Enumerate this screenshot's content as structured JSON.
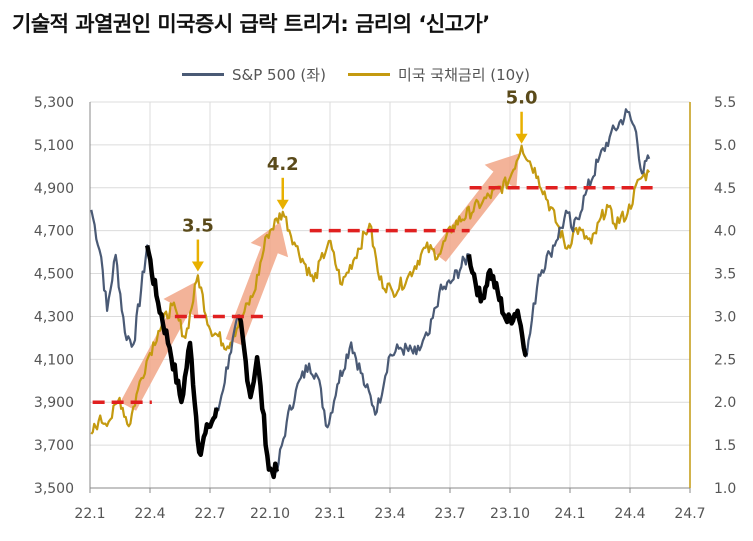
{
  "title": "기술적 과열권인 미국증시 급락 트리거: 금리의 ‘신고가’",
  "legend": [
    {
      "name": "S&P 500 (좌)",
      "color": "#4a5a75"
    },
    {
      "name": "미국 국채금리 (10y)",
      "color": "#c49a10"
    }
  ],
  "colors": {
    "sp_highlight": "#000000",
    "threshold": "#e02020",
    "arrow": "#f0a080",
    "annotation_arrow": "#e8b000"
  },
  "chart_data": {
    "type": "line",
    "x_ticks": [
      "22.1",
      "22.4",
      "22.7",
      "22.10",
      "23.1",
      "23.4",
      "23.7",
      "23.10",
      "24.1",
      "24.4",
      "24.7"
    ],
    "y_left_ticks": [
      "5,300",
      "5,100",
      "4,900",
      "4,700",
      "4,500",
      "4,300",
      "4,100",
      "3,900",
      "3,700",
      "3,500"
    ],
    "y_right_ticks": [
      "5.5",
      "5.0",
      "4.5",
      "4.0",
      "3.5",
      "3.0",
      "2.5",
      "2.0",
      "1.5",
      "1.0"
    ],
    "ylim_left": [
      3500,
      5300
    ],
    "ylim_right": [
      1.0,
      5.5
    ],
    "grid": true,
    "series": [
      {
        "name": "S&P 500 (좌)",
        "axis": "left",
        "points": [
          [
            "2022-01-03",
            4797
          ],
          [
            "2022-01-18",
            4577
          ],
          [
            "2022-01-27",
            4326
          ],
          [
            "2022-02-09",
            4587
          ],
          [
            "2022-02-23",
            4225
          ],
          [
            "2022-03-08",
            4170
          ],
          [
            "2022-03-29",
            4631
          ],
          [
            "2022-04-12",
            4397
          ],
          [
            "2022-05-02",
            4155
          ],
          [
            "2022-05-20",
            3901
          ],
          [
            "2022-06-02",
            4176
          ],
          [
            "2022-06-16",
            3667
          ],
          [
            "2022-06-30",
            3785
          ],
          [
            "2022-07-15",
            3863
          ],
          [
            "2022-08-01",
            4119
          ],
          [
            "2022-08-16",
            4305
          ],
          [
            "2022-09-02",
            3924
          ],
          [
            "2022-09-12",
            4110
          ],
          [
            "2022-09-30",
            3586
          ],
          [
            "2022-10-12",
            3577
          ],
          [
            "2022-10-27",
            3808
          ],
          [
            "2022-11-10",
            3956
          ],
          [
            "2022-11-30",
            4080
          ],
          [
            "2022-12-13",
            4019
          ],
          [
            "2022-12-28",
            3783
          ],
          [
            "2023-01-12",
            3983
          ],
          [
            "2023-02-02",
            4179
          ],
          [
            "2023-02-24",
            3970
          ],
          [
            "2023-03-13",
            3855
          ],
          [
            "2023-03-31",
            4109
          ],
          [
            "2023-04-18",
            4154
          ],
          [
            "2023-05-12",
            4124
          ],
          [
            "2023-06-01",
            4221
          ],
          [
            "2023-06-16",
            4409
          ],
          [
            "2023-07-03",
            4455
          ],
          [
            "2023-07-31",
            4589
          ],
          [
            "2023-08-18",
            4370
          ],
          [
            "2023-09-01",
            4515
          ],
          [
            "2023-09-27",
            4274
          ],
          [
            "2023-10-13",
            4327
          ],
          [
            "2023-10-27",
            4117
          ],
          [
            "2023-11-14",
            4495
          ],
          [
            "2023-12-01",
            4594
          ],
          [
            "2023-12-28",
            4783
          ],
          [
            "2024-01-05",
            4697
          ],
          [
            "2024-01-24",
            4868
          ],
          [
            "2024-02-12",
            5021
          ],
          [
            "2024-03-01",
            5137
          ],
          [
            "2024-03-28",
            5254
          ],
          [
            "2024-04-10",
            5160
          ],
          [
            "2024-04-19",
            4967
          ],
          [
            "2024-04-30",
            5035
          ]
        ]
      },
      {
        "name": "미국 국채금리 (10y)",
        "axis": "right",
        "points": [
          [
            "2022-01-03",
            1.63
          ],
          [
            "2022-01-14",
            1.78
          ],
          [
            "2022-02-01",
            1.8
          ],
          [
            "2022-02-15",
            2.05
          ],
          [
            "2022-03-01",
            1.72
          ],
          [
            "2022-03-15",
            2.15
          ],
          [
            "2022-03-28",
            2.48
          ],
          [
            "2022-04-15",
            2.83
          ],
          [
            "2022-05-06",
            3.13
          ],
          [
            "2022-05-26",
            2.75
          ],
          [
            "2022-06-14",
            3.48
          ],
          [
            "2022-07-01",
            2.88
          ],
          [
            "2022-07-29",
            2.65
          ],
          [
            "2022-08-19",
            2.98
          ],
          [
            "2022-09-07",
            3.27
          ],
          [
            "2022-09-27",
            3.95
          ],
          [
            "2022-10-21",
            4.22
          ],
          [
            "2022-11-10",
            3.82
          ],
          [
            "2022-12-07",
            3.41
          ],
          [
            "2022-12-30",
            3.88
          ],
          [
            "2023-01-19",
            3.37
          ],
          [
            "2023-03-02",
            4.08
          ],
          [
            "2023-03-17",
            3.43
          ],
          [
            "2023-04-06",
            3.29
          ],
          [
            "2023-04-28",
            3.44
          ],
          [
            "2023-05-26",
            3.8
          ],
          [
            "2023-06-15",
            3.72
          ],
          [
            "2023-07-07",
            4.06
          ],
          [
            "2023-08-21",
            4.34
          ],
          [
            "2023-09-29",
            4.57
          ],
          [
            "2023-10-19",
            4.99
          ],
          [
            "2023-11-13",
            4.63
          ],
          [
            "2023-12-27",
            3.79
          ],
          [
            "2024-01-10",
            4.03
          ],
          [
            "2024-02-02",
            3.85
          ],
          [
            "2024-02-26",
            4.3
          ],
          [
            "2024-03-08",
            4.08
          ],
          [
            "2024-03-28",
            4.2
          ],
          [
            "2024-04-15",
            4.6
          ],
          [
            "2024-04-30",
            4.68
          ]
        ]
      }
    ],
    "sp_black_segments": [
      [
        "2022-03-29",
        "2022-07-14"
      ],
      [
        "2022-08-16",
        "2022-10-12"
      ],
      [
        "2023-07-31",
        "2023-10-27"
      ]
    ],
    "thresholds": [
      {
        "value": 2.0,
        "from": "2022-01-05",
        "to": "2022-04-05"
      },
      {
        "value": 3.0,
        "from": "2022-05-10",
        "to": "2022-09-25"
      },
      {
        "value": 4.0,
        "from": "2022-12-01",
        "to": "2023-08-01"
      },
      {
        "value": 4.5,
        "from": "2023-08-01",
        "to": "2024-05-15"
      }
    ],
    "annotations": [
      {
        "text": "3.5",
        "date": "2022-06-14",
        "value": 3.5
      },
      {
        "text": "4.2",
        "date": "2022-10-21",
        "value": 4.22
      },
      {
        "text": "5.0",
        "date": "2023-10-19",
        "value": 4.99
      }
    ],
    "trend_arrows": [
      {
        "from_date": "2022-02-28",
        "from_value": 1.95,
        "to_date": "2022-06-10",
        "to_value": 3.4
      },
      {
        "from_date": "2022-08-08",
        "from_value": 2.7,
        "to_date": "2022-10-17",
        "to_value": 4.1
      },
      {
        "from_date": "2023-06-15",
        "from_value": 3.7,
        "to_date": "2023-10-15",
        "to_value": 4.9
      }
    ]
  }
}
